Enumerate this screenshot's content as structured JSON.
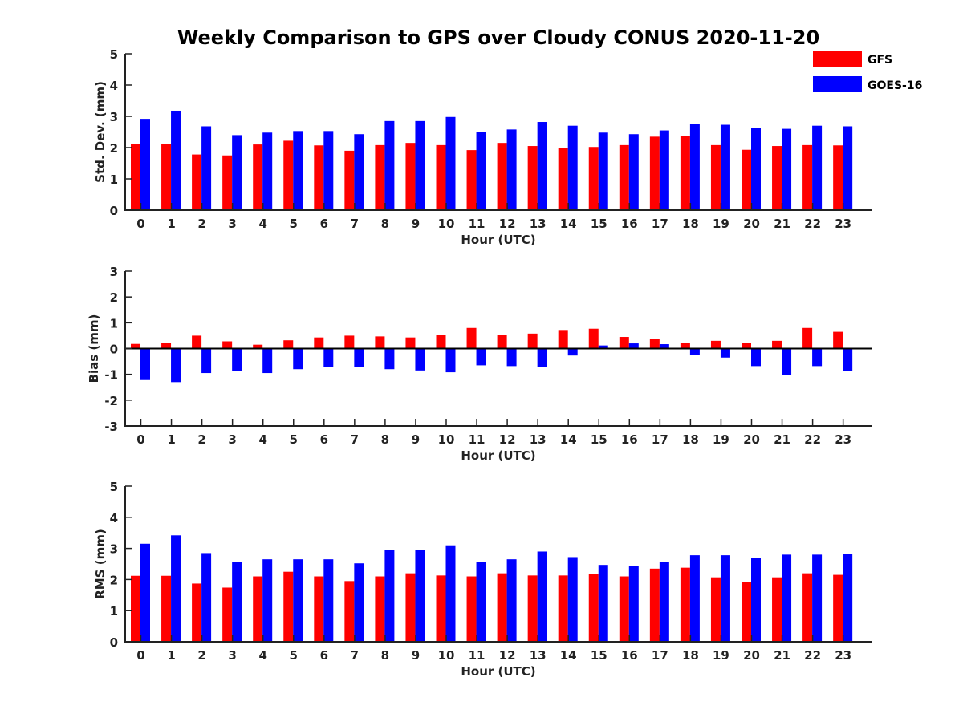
{
  "title": "Weekly Comparison to GPS over Cloudy CONUS 2020-11-20",
  "colors": {
    "GFS": "#ff0000",
    "GOES-16": "#0000ff"
  },
  "legend": {
    "placement": "top-right",
    "entries": [
      {
        "name": "GFS",
        "color": "#ff0000"
      },
      {
        "name": "GOES-16",
        "color": "#0000ff"
      }
    ]
  },
  "chart_data": [
    {
      "type": "bar",
      "xlabel": "Hour (UTC)",
      "ylabel": "Std. Dev. (mm)",
      "ylim": [
        0,
        5
      ],
      "yticks": [
        0,
        1,
        2,
        3,
        4,
        5
      ],
      "categories": [
        "0",
        "1",
        "2",
        "3",
        "4",
        "5",
        "6",
        "7",
        "8",
        "9",
        "10",
        "11",
        "12",
        "13",
        "14",
        "15",
        "16",
        "17",
        "18",
        "19",
        "20",
        "21",
        "22",
        "23"
      ],
      "series": [
        {
          "name": "GFS",
          "values": [
            2.12,
            2.12,
            1.78,
            1.75,
            2.1,
            2.22,
            2.07,
            1.9,
            2.08,
            2.15,
            2.08,
            1.92,
            2.15,
            2.05,
            2.0,
            2.02,
            2.08,
            2.35,
            2.38,
            2.08,
            1.93,
            2.05,
            2.08,
            2.07
          ]
        },
        {
          "name": "GOES-16",
          "values": [
            2.92,
            3.18,
            2.68,
            2.4,
            2.48,
            2.53,
            2.53,
            2.43,
            2.85,
            2.85,
            2.98,
            2.5,
            2.58,
            2.82,
            2.7,
            2.48,
            2.43,
            2.55,
            2.75,
            2.73,
            2.63,
            2.6,
            2.7,
            2.68
          ]
        }
      ]
    },
    {
      "type": "bar",
      "xlabel": "Hour (UTC)",
      "ylabel": "Bias (mm)",
      "ylim": [
        -3,
        3
      ],
      "yticks": [
        -3,
        -2,
        -1,
        0,
        1,
        2,
        3
      ],
      "zero_line": true,
      "categories": [
        "0",
        "1",
        "2",
        "3",
        "4",
        "5",
        "6",
        "7",
        "8",
        "9",
        "10",
        "11",
        "12",
        "13",
        "14",
        "15",
        "16",
        "17",
        "18",
        "19",
        "20",
        "21",
        "22",
        "23"
      ],
      "series": [
        {
          "name": "GFS",
          "values": [
            0.18,
            0.22,
            0.5,
            0.28,
            0.15,
            0.32,
            0.43,
            0.5,
            0.47,
            0.43,
            0.53,
            0.8,
            0.53,
            0.58,
            0.72,
            0.77,
            0.45,
            0.37,
            0.22,
            0.3,
            0.22,
            0.3,
            0.8,
            0.65
          ]
        },
        {
          "name": "GOES-16",
          "values": [
            -1.22,
            -1.3,
            -0.95,
            -0.88,
            -0.95,
            -0.8,
            -0.73,
            -0.73,
            -0.8,
            -0.85,
            -0.92,
            -0.65,
            -0.68,
            -0.7,
            -0.27,
            0.12,
            0.2,
            0.17,
            -0.25,
            -0.35,
            -0.68,
            -1.02,
            -0.68,
            -0.88
          ]
        }
      ]
    },
    {
      "type": "bar",
      "xlabel": "Hour (UTC)",
      "ylabel": "RMS (mm)",
      "ylim": [
        0,
        5
      ],
      "yticks": [
        0,
        1,
        2,
        3,
        4,
        5
      ],
      "categories": [
        "0",
        "1",
        "2",
        "3",
        "4",
        "5",
        "6",
        "7",
        "8",
        "9",
        "10",
        "11",
        "12",
        "13",
        "14",
        "15",
        "16",
        "17",
        "18",
        "19",
        "20",
        "21",
        "22",
        "23"
      ],
      "series": [
        {
          "name": "GFS",
          "values": [
            2.12,
            2.12,
            1.87,
            1.74,
            2.1,
            2.25,
            2.1,
            1.95,
            2.1,
            2.2,
            2.13,
            2.1,
            2.2,
            2.13,
            2.13,
            2.18,
            2.1,
            2.35,
            2.38,
            2.07,
            1.93,
            2.07,
            2.2,
            2.15
          ]
        },
        {
          "name": "GOES-16",
          "values": [
            3.15,
            3.42,
            2.85,
            2.57,
            2.65,
            2.65,
            2.65,
            2.52,
            2.95,
            2.95,
            3.1,
            2.57,
            2.65,
            2.9,
            2.72,
            2.47,
            2.43,
            2.57,
            2.78,
            2.78,
            2.7,
            2.8,
            2.8,
            2.82
          ]
        }
      ]
    }
  ]
}
